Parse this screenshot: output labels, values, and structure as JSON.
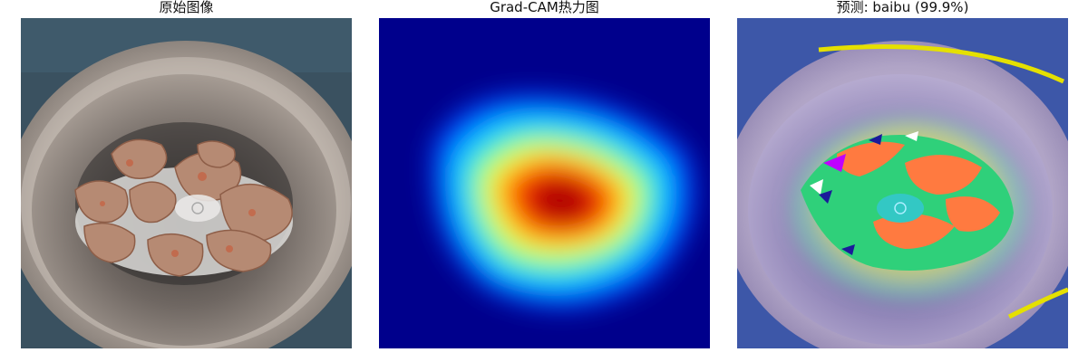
{
  "figure": {
    "panels": [
      {
        "title": "原始图像",
        "image": "bowl-with-ginseng-pieces"
      },
      {
        "title": "Grad-CAM热力图",
        "image": "jet-colormap-heatmap"
      },
      {
        "title": "预测: baibu (99.9%)",
        "image": "heatmap-overlay-on-photo"
      }
    ],
    "colors": {
      "background": "#ffffff",
      "heatmap_low": "#00008c",
      "heatmap_high": "#8b0000"
    }
  }
}
